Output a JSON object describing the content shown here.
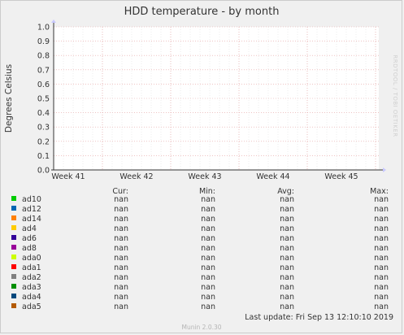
{
  "chart_data": {
    "type": "line",
    "title": "HDD temperature - by month",
    "ylabel": "Degrees Celsius",
    "ylim": [
      0,
      1.0
    ],
    "yticks": [
      "0.0",
      "0.1",
      "0.2",
      "0.3",
      "0.4",
      "0.5",
      "0.6",
      "0.7",
      "0.8",
      "0.9",
      "1.0"
    ],
    "xticks": [
      "Week 41",
      "Week 42",
      "Week 43",
      "Week 44",
      "Week 45"
    ],
    "grid": true,
    "side_text": "RRDTOOL / TOBI OETIKER",
    "legend_headers": [
      "Cur:",
      "Min:",
      "Avg:",
      "Max:"
    ],
    "series": [
      {
        "name": "ad10",
        "color": "#00cc00",
        "cur": "nan",
        "min": "nan",
        "avg": "nan",
        "max": "nan"
      },
      {
        "name": "ad12",
        "color": "#0066b3",
        "cur": "nan",
        "min": "nan",
        "avg": "nan",
        "max": "nan"
      },
      {
        "name": "ad14",
        "color": "#ff8000",
        "cur": "nan",
        "min": "nan",
        "avg": "nan",
        "max": "nan"
      },
      {
        "name": "ad4",
        "color": "#ffcc00",
        "cur": "nan",
        "min": "nan",
        "avg": "nan",
        "max": "nan"
      },
      {
        "name": "ad6",
        "color": "#330099",
        "cur": "nan",
        "min": "nan",
        "avg": "nan",
        "max": "nan"
      },
      {
        "name": "ad8",
        "color": "#990099",
        "cur": "nan",
        "min": "nan",
        "avg": "nan",
        "max": "nan"
      },
      {
        "name": "ada0",
        "color": "#ccff00",
        "cur": "nan",
        "min": "nan",
        "avg": "nan",
        "max": "nan"
      },
      {
        "name": "ada1",
        "color": "#ff0000",
        "cur": "nan",
        "min": "nan",
        "avg": "nan",
        "max": "nan"
      },
      {
        "name": "ada2",
        "color": "#808080",
        "cur": "nan",
        "min": "nan",
        "avg": "nan",
        "max": "nan"
      },
      {
        "name": "ada3",
        "color": "#008f00",
        "cur": "nan",
        "min": "nan",
        "avg": "nan",
        "max": "nan"
      },
      {
        "name": "ada4",
        "color": "#00487d",
        "cur": "nan",
        "min": "nan",
        "avg": "nan",
        "max": "nan"
      },
      {
        "name": "ada5",
        "color": "#b35a00",
        "cur": "nan",
        "min": "nan",
        "avg": "nan",
        "max": "nan"
      }
    ],
    "last_update": "Last update: Fri Sep 13 12:10:10 2019",
    "version": "Munin 2.0.30"
  }
}
